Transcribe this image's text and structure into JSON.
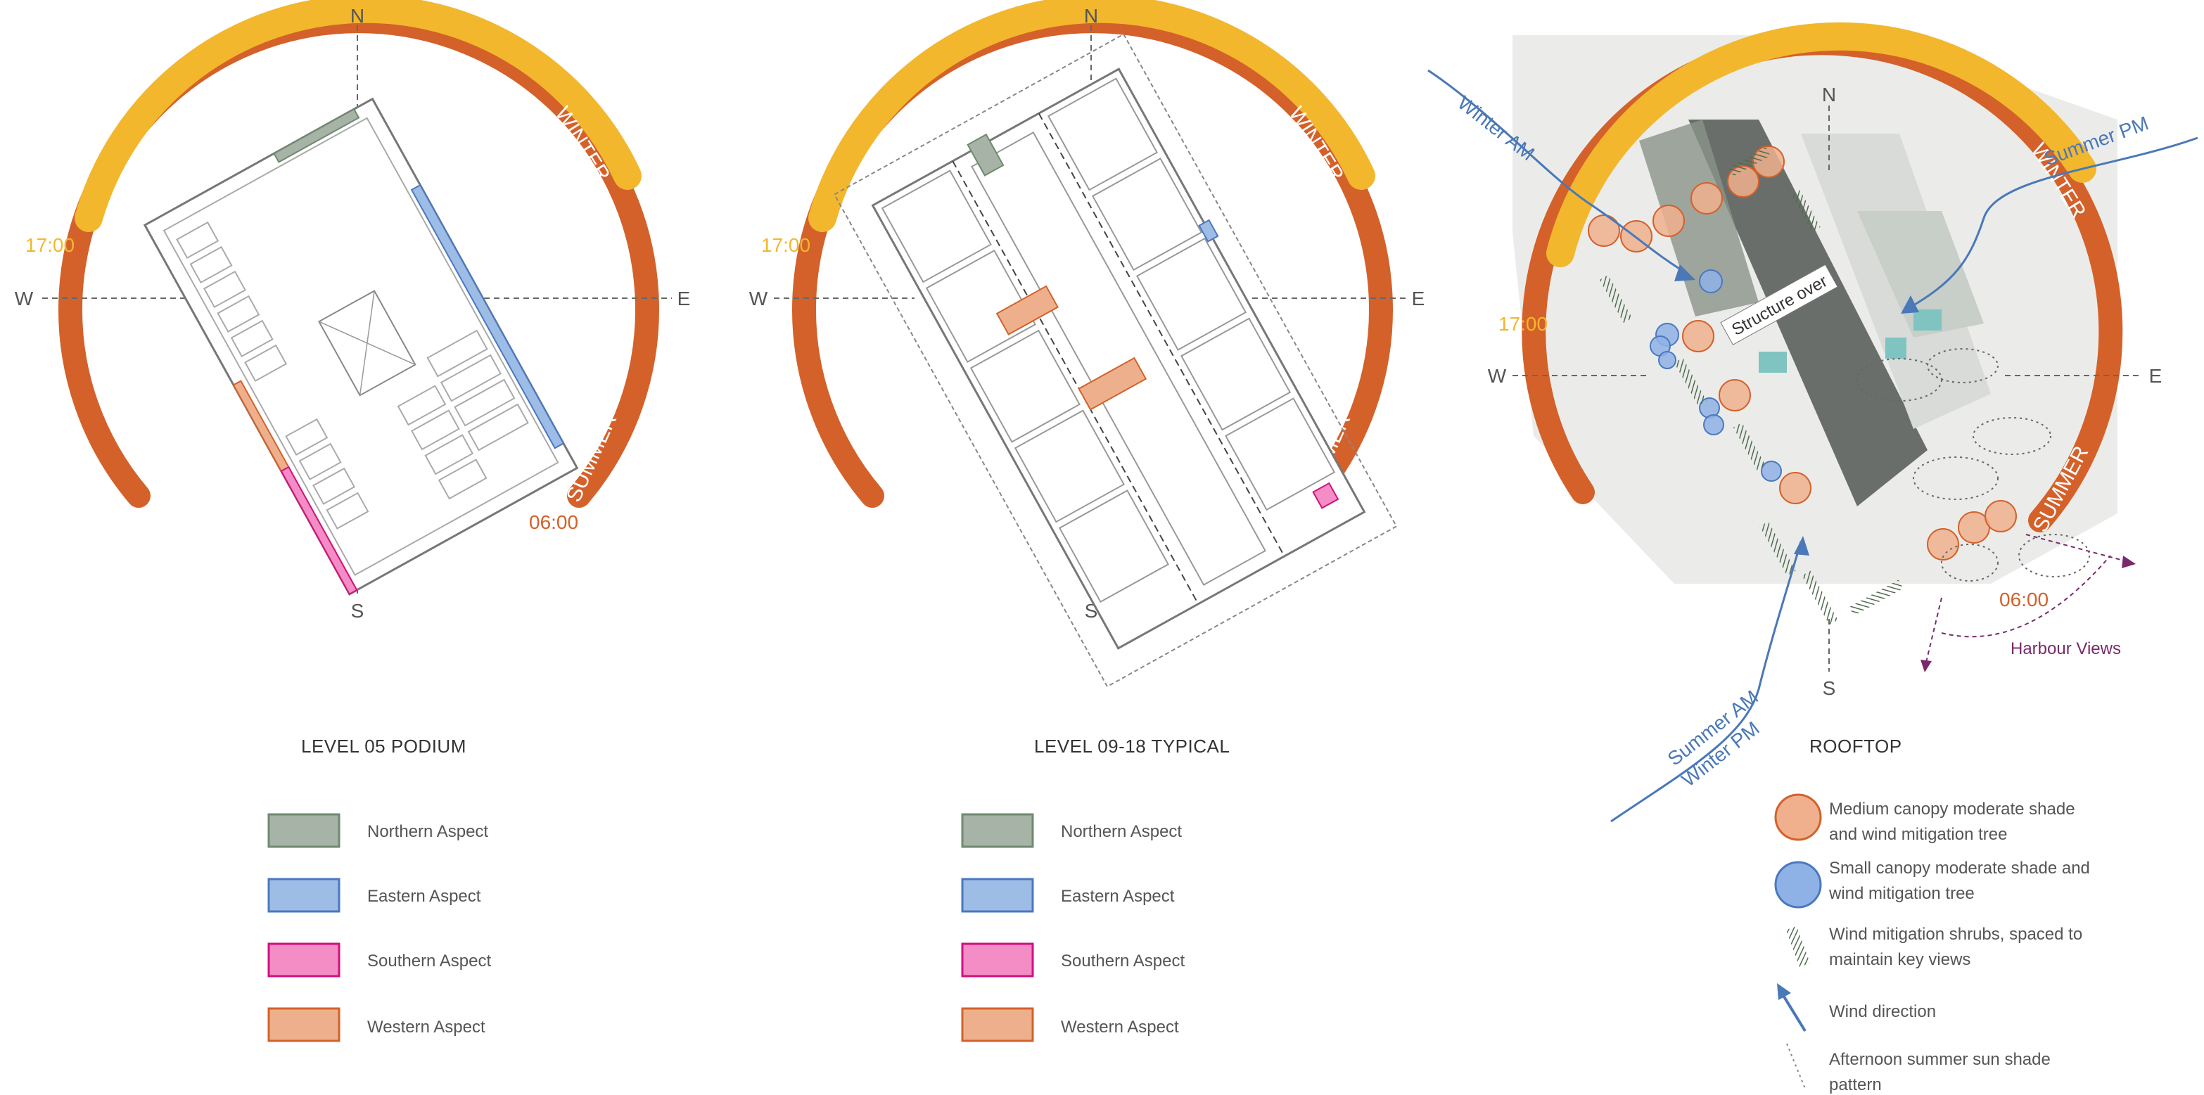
{
  "colors": {
    "winter_arc": "#f2b72d",
    "summer_arc": "#d4612a",
    "time_early": "#f2b72d",
    "time_late": "#d4612a",
    "northern": "#a6b3a6",
    "northern_stroke": "#6f8a6f",
    "eastern": "#9dbce6",
    "eastern_stroke": "#4a78c0",
    "southern": "#f48cc5",
    "southern_stroke": "#d1107f",
    "western": "#eeb08c",
    "western_stroke": "#d4612a",
    "wind": "#4a78b8",
    "views": "#7a2a6a",
    "tree_medium": "#f0b08e",
    "tree_small": "#8fb2e6",
    "shrub": "#4f6b4f"
  },
  "compass": {
    "n": "N",
    "s": "S",
    "e": "E",
    "w": "W"
  },
  "sun": {
    "evening": "17:00",
    "morning": "06:00",
    "winter": "WINTER",
    "summer": "SUMMER"
  },
  "panels": [
    {
      "title": "LEVEL 05 PODIUM",
      "legend": [
        {
          "label": "Northern Aspect",
          "key": "northern"
        },
        {
          "label": "Eastern Aspect",
          "key": "eastern"
        },
        {
          "label": "Southern Aspect",
          "key": "southern"
        },
        {
          "label": "Western Aspect",
          "key": "western"
        }
      ]
    },
    {
      "title": "LEVEL 09-18 TYPICAL",
      "legend": [
        {
          "label": "Northern Aspect",
          "key": "northern"
        },
        {
          "label": "Eastern Aspect",
          "key": "eastern"
        },
        {
          "label": "Southern Aspect",
          "key": "southern"
        },
        {
          "label": "Western Aspect",
          "key": "western"
        }
      ]
    },
    {
      "title": "ROOFTOP",
      "structure_label": "Structure over",
      "wind": {
        "winter_am": "Winter AM",
        "summer_pm": "Summer PM",
        "summer_am": "Summer AM",
        "winter_pm": "Winter PM"
      },
      "harbour_views": "Harbour Views",
      "legend": [
        {
          "icon": "medium-tree",
          "lines": [
            "Medium canopy moderate shade",
            "and wind mitigation tree"
          ]
        },
        {
          "icon": "small-tree",
          "lines": [
            "Small canopy moderate shade and",
            "wind mitigation tree"
          ]
        },
        {
          "icon": "shrub",
          "lines": [
            "Wind mitigation shrubs, spaced to",
            "maintain key views"
          ]
        },
        {
          "icon": "wind-arrow",
          "lines": [
            "Wind direction"
          ]
        },
        {
          "icon": "shade-pattern",
          "lines": [
            "Afternoon summer sun shade",
            "pattern"
          ]
        }
      ]
    }
  ]
}
